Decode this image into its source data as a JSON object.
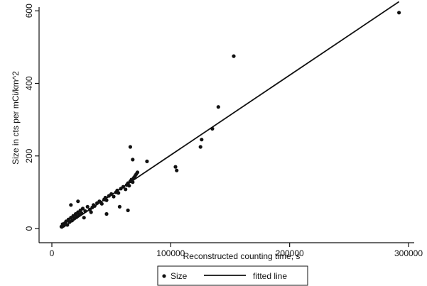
{
  "chart_data": {
    "type": "scatter",
    "title": "",
    "xlabel": "Reconstructed counting time, s",
    "ylabel": "Size in cts per mCi/km^2",
    "xlim": [
      0,
      300000
    ],
    "ylim": [
      0,
      620
    ],
    "xticks": [
      0,
      100000,
      200000,
      300000
    ],
    "yticks": [
      0,
      200,
      400,
      600
    ],
    "grid": false,
    "legend_position": "bottom",
    "series": [
      {
        "name": "Size",
        "kind": "points",
        "x": [
          8000,
          9000,
          10000,
          11000,
          12000,
          13000,
          14000,
          15000,
          16000,
          17000,
          18000,
          19000,
          20000,
          21000,
          22000,
          23000,
          24000,
          25000,
          26000,
          28000,
          30000,
          32000,
          34000,
          35000,
          36000,
          38000,
          40000,
          42000,
          44000,
          45000,
          46000,
          48000,
          50000,
          52000,
          54000,
          55000,
          56000,
          58000,
          60000,
          62000,
          63000,
          64000,
          65000,
          66000,
          67000,
          68000,
          69000,
          70000,
          71000,
          72000,
          16000,
          22000,
          27000,
          33000,
          46000,
          57000,
          64000,
          66000,
          68000,
          80000,
          104000,
          105000,
          125000,
          126000,
          135000,
          140000,
          153000,
          292000
        ],
        "y": [
          5,
          12,
          8,
          15,
          20,
          10,
          25,
          18,
          30,
          22,
          35,
          28,
          40,
          32,
          45,
          38,
          50,
          42,
          55,
          48,
          60,
          52,
          58,
          65,
          62,
          70,
          75,
          68,
          80,
          85,
          78,
          90,
          95,
          88,
          100,
          105,
          98,
          110,
          115,
          108,
          120,
          125,
          118,
          130,
          135,
          128,
          140,
          145,
          150,
          155,
          65,
          75,
          30,
          45,
          40,
          60,
          50,
          225,
          190,
          185,
          170,
          160,
          225,
          245,
          275,
          335,
          475,
          595
        ]
      },
      {
        "name": "fitted line",
        "kind": "line",
        "x": [
          8000,
          292000
        ],
        "y": [
          0,
          625
        ]
      }
    ]
  }
}
